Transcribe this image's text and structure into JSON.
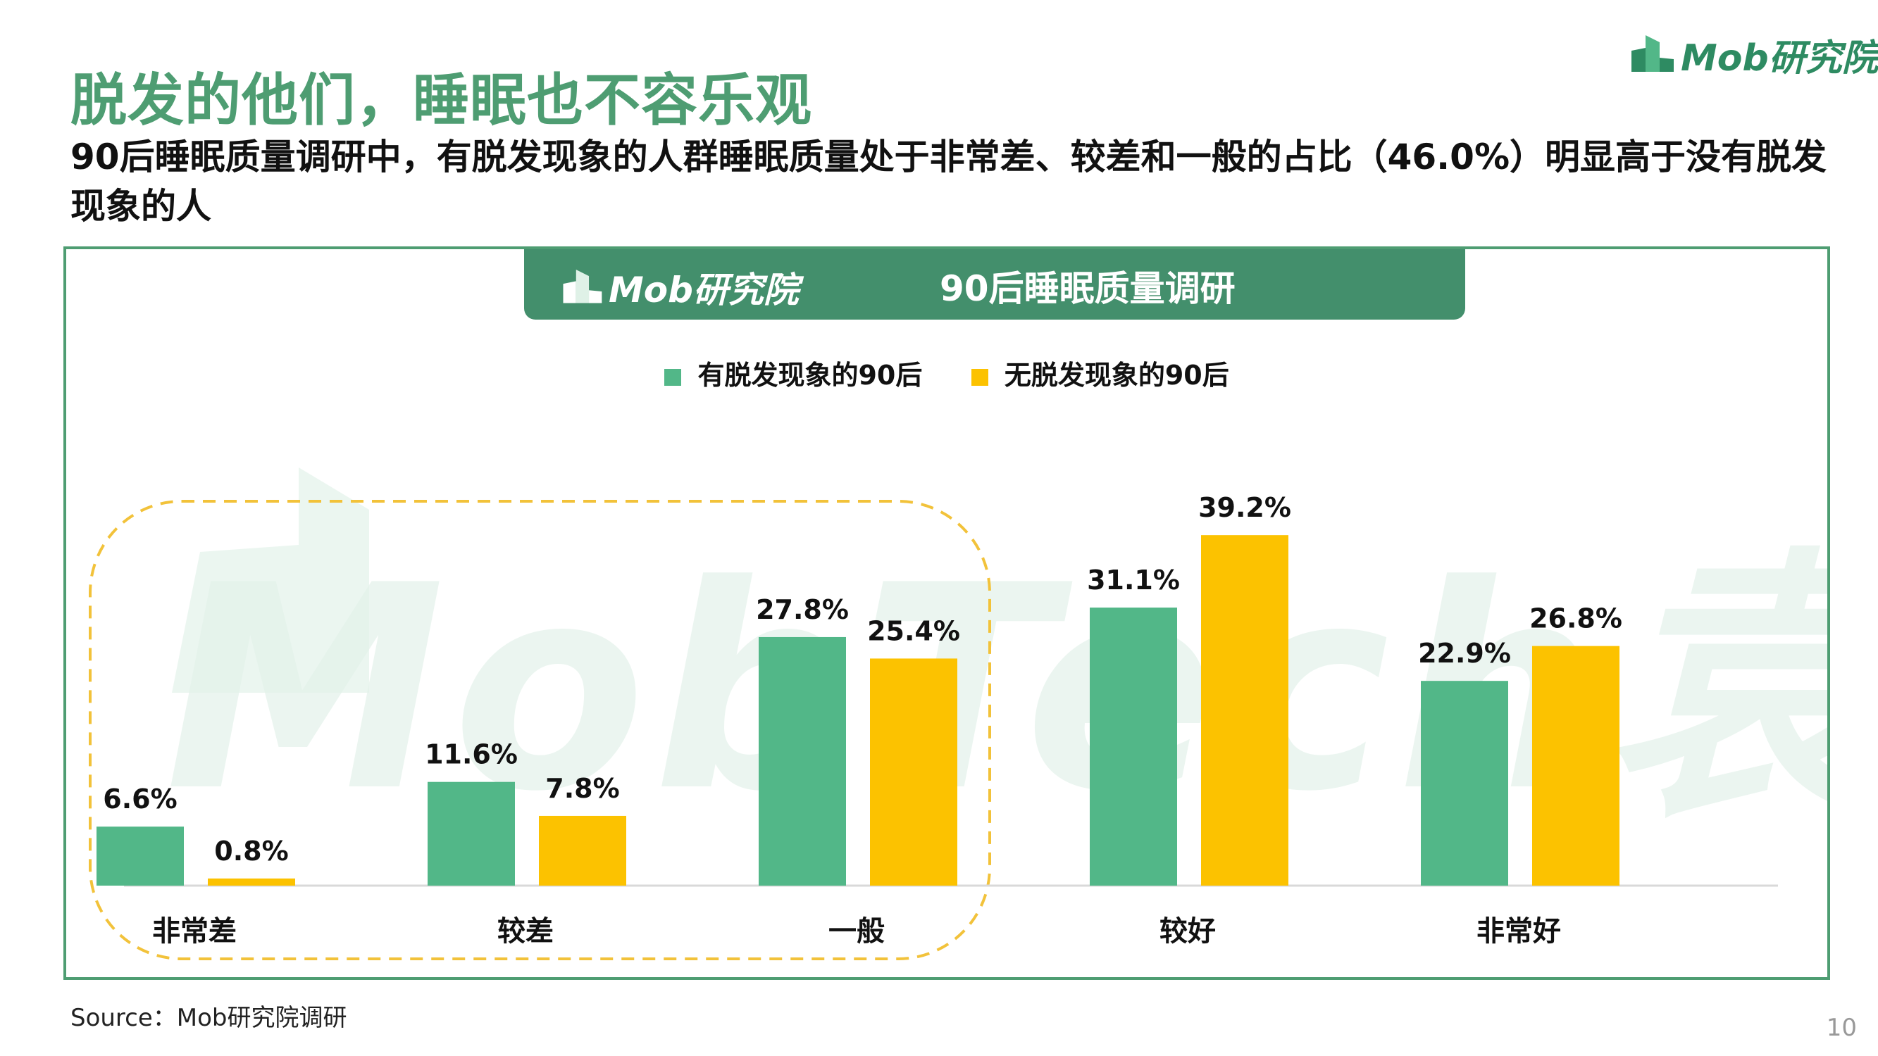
{
  "title": "脱发的他们，睡眠也不容乐观",
  "subtitle": "90后睡眠质量调研中，有脱发现象的人群睡眠质量处于非常差、较差和一般的占比（46.0%）明显高于没有脱发现象的人",
  "logo": {
    "text": "Mob研究院"
  },
  "chart_banner": {
    "logo_text": "Mob研究院",
    "title": "90后睡眠质量调研"
  },
  "watermark_text": "MobTech袁博",
  "colors": {
    "accent": "#4e9d72",
    "banner": "#438f6c",
    "series_green": "#52b788",
    "series_yellow": "#fcc200",
    "highlight_border": "#f2c23a"
  },
  "chart_data": {
    "type": "bar",
    "categories": [
      "非常差",
      "较差",
      "一般",
      "较好",
      "非常好"
    ],
    "series": [
      {
        "name": "有脱发现象的90后",
        "values": [
          6.6,
          11.6,
          27.8,
          31.1,
          22.9
        ],
        "labels": [
          "6.6%",
          "11.6%",
          "27.8%",
          "31.1%",
          "22.9%"
        ],
        "color": "#52b788"
      },
      {
        "name": "无脱发现象的90后",
        "values": [
          0.8,
          7.8,
          25.4,
          39.2,
          26.8
        ],
        "labels": [
          "0.8%",
          "7.8%",
          "25.4%",
          "39.2%",
          "26.8%"
        ],
        "color": "#fcc200"
      }
    ],
    "ylim": [
      0,
      45
    ],
    "legend_position": "top-center",
    "highlight_categories": [
      "非常差",
      "较差",
      "一般"
    ],
    "grid": false
  },
  "source": "Source：Mob研究院调研",
  "page_number": "10"
}
